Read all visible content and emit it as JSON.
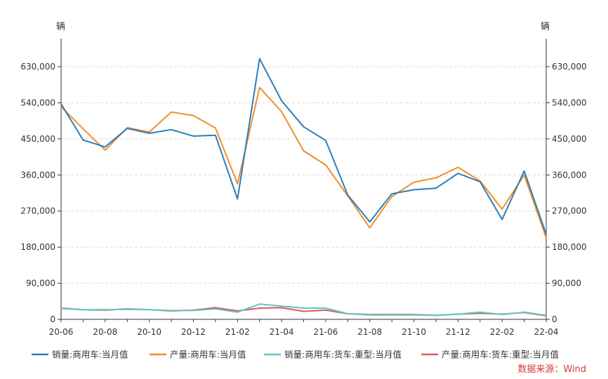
{
  "chart_data": {
    "type": "line",
    "left_unit": "辆",
    "right_unit": "辆",
    "categories": [
      "20-06",
      "20-07",
      "20-08",
      "20-09",
      "20-10",
      "20-11",
      "20-12",
      "21-01",
      "21-02",
      "21-03",
      "21-04",
      "21-05",
      "21-06",
      "21-07",
      "21-08",
      "21-09",
      "21-10",
      "21-11",
      "21-12",
      "22-01",
      "22-02",
      "22-03",
      "22-04"
    ],
    "x_tick_labels": [
      "20-06",
      "20-08",
      "20-10",
      "20-12",
      "21-02",
      "21-04",
      "21-06",
      "21-08",
      "21-10",
      "21-12",
      "22-02",
      "22-04"
    ],
    "ylim": [
      0,
      700000
    ],
    "y_ticks": [
      0,
      90000,
      180000,
      270000,
      360000,
      450000,
      540000,
      630000
    ],
    "y_tick_labels": [
      "0",
      "90,000",
      "180,000",
      "270,000",
      "360,000",
      "450,000",
      "540,000",
      "630,000"
    ],
    "grid": true,
    "legend_position": "bottom",
    "source": "数据来源：Wind",
    "series": [
      {
        "name": "销量:商用车:当月值",
        "color": "#2e7fb8",
        "values": [
          537000,
          447000,
          430000,
          476000,
          464000,
          473000,
          457000,
          459000,
          300000,
          650000,
          545000,
          480000,
          446000,
          310000,
          243000,
          313000,
          323000,
          327000,
          364000,
          343000,
          249000,
          370000,
          212000
        ]
      },
      {
        "name": "产量:商用车:当月值",
        "color": "#f28e2b",
        "values": [
          530000,
          475000,
          422000,
          478000,
          467000,
          517000,
          508000,
          477000,
          338000,
          578000,
          518000,
          420000,
          385000,
          308000,
          228000,
          306000,
          342000,
          353000,
          379000,
          345000,
          275000,
          360000,
          203000
        ]
      },
      {
        "name": "销量:商用车:货车:重型:当月值",
        "color": "#5fc5c8",
        "values": [
          27000,
          24000,
          24000,
          25000,
          24000,
          22000,
          22000,
          26000,
          18000,
          38000,
          33000,
          28000,
          28000,
          14000,
          11000,
          11000,
          11000,
          10000,
          13000,
          18000,
          12000,
          18000,
          10000
        ]
      },
      {
        "name": "产量:商用车:货车:重型:当月值",
        "color": "#e05a5a",
        "values": [
          28000,
          24000,
          23000,
          26000,
          24000,
          21000,
          23000,
          29000,
          21000,
          28000,
          29000,
          20000,
          23000,
          14000,
          12000,
          12000,
          12000,
          10000,
          13000,
          15000,
          13000,
          17000,
          9000
        ]
      }
    ]
  }
}
